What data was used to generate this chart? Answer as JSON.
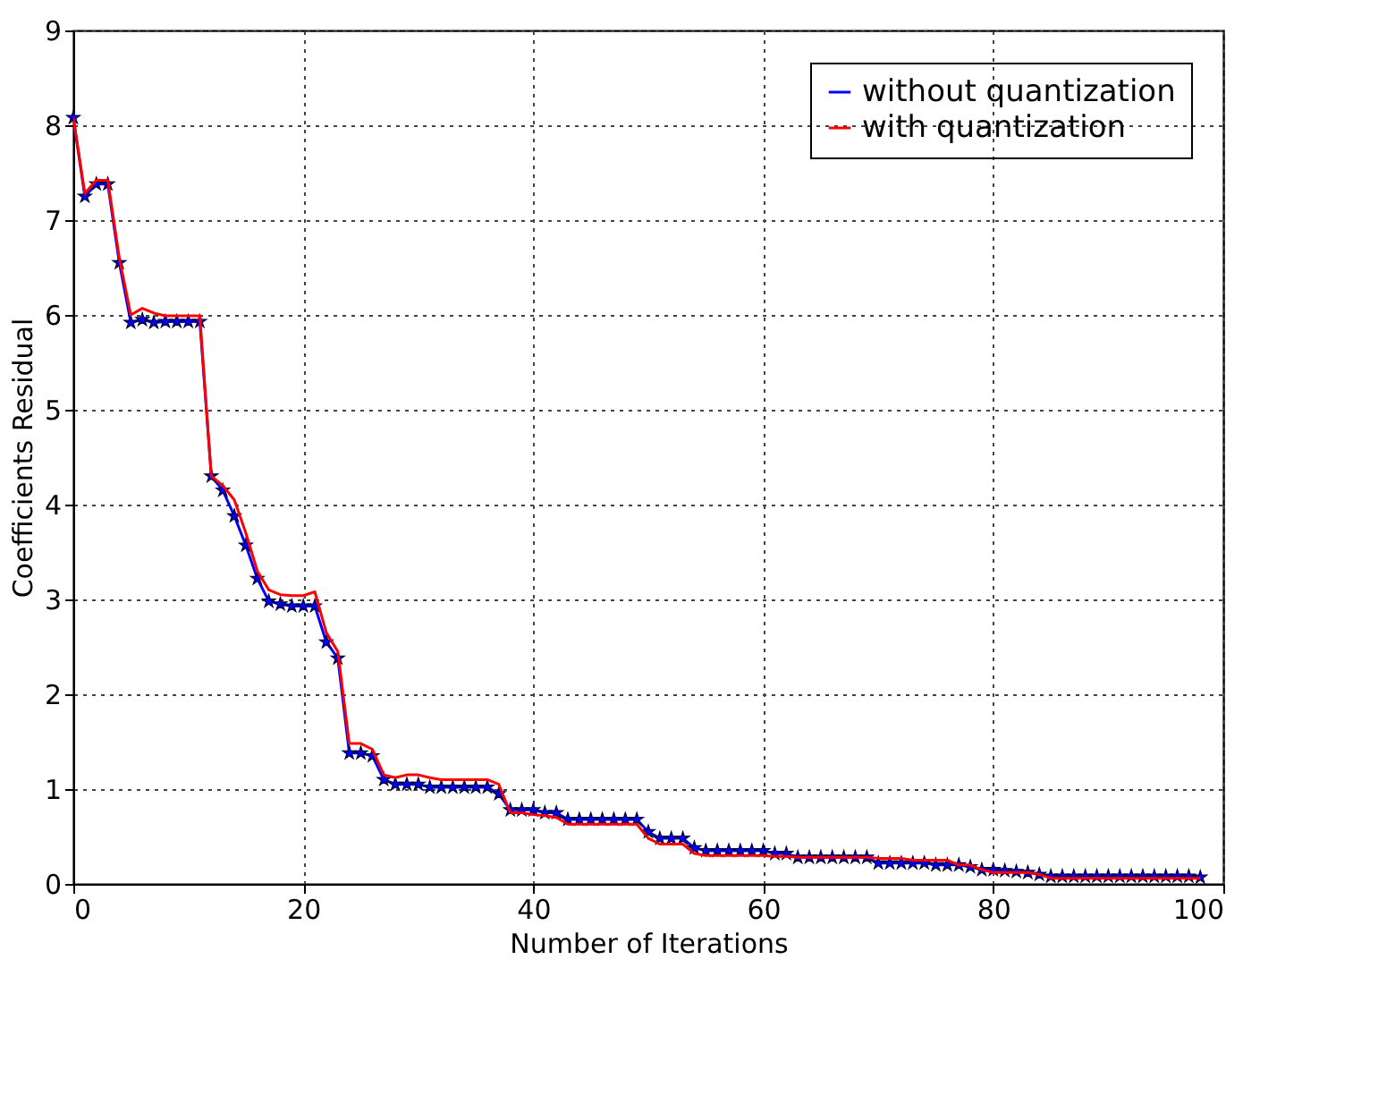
{
  "chart_data": {
    "type": "line",
    "xlabel": "Number of Iterations",
    "ylabel": "Coefficients Residual",
    "xlim": [
      0,
      100
    ],
    "ylim": [
      0,
      9
    ],
    "xticks": [
      0,
      20,
      40,
      60,
      80,
      100
    ],
    "yticks": [
      0,
      1,
      2,
      3,
      4,
      5,
      6,
      7,
      8,
      9
    ],
    "grid": true,
    "legend": "top right",
    "series": [
      {
        "name": "without quantization",
        "color": "#0000ff",
        "marker": "star",
        "x": [
          0,
          1,
          2,
          3,
          4,
          5,
          6,
          7,
          8,
          9,
          10,
          11,
          12,
          13,
          14,
          15,
          16,
          17,
          18,
          19,
          20,
          21,
          22,
          23,
          24,
          25,
          26,
          27,
          28,
          29,
          30,
          31,
          32,
          33,
          34,
          35,
          36,
          37,
          38,
          39,
          40,
          41,
          42,
          43,
          44,
          45,
          46,
          47,
          48,
          49,
          50,
          51,
          52,
          53,
          54,
          55,
          56,
          57,
          58,
          59,
          60,
          61,
          62,
          63,
          64,
          65,
          66,
          67,
          68,
          69,
          70,
          71,
          72,
          73,
          74,
          75,
          76,
          77,
          78,
          79,
          80,
          81,
          82,
          83,
          84,
          85,
          86,
          87,
          88,
          89,
          90,
          91,
          92,
          93,
          94,
          95,
          96,
          97,
          98
        ],
        "values": [
          8.08,
          7.25,
          7.38,
          7.38,
          6.55,
          5.92,
          5.95,
          5.92,
          5.93,
          5.93,
          5.93,
          5.93,
          4.3,
          4.15,
          3.88,
          3.57,
          3.22,
          2.98,
          2.95,
          2.93,
          2.93,
          2.93,
          2.55,
          2.38,
          1.38,
          1.38,
          1.35,
          1.1,
          1.05,
          1.05,
          1.05,
          1.02,
          1.02,
          1.02,
          1.02,
          1.02,
          1.02,
          0.95,
          0.78,
          0.78,
          0.78,
          0.75,
          0.75,
          0.68,
          0.68,
          0.68,
          0.68,
          0.68,
          0.68,
          0.68,
          0.55,
          0.48,
          0.48,
          0.48,
          0.38,
          0.35,
          0.35,
          0.35,
          0.35,
          0.35,
          0.35,
          0.32,
          0.32,
          0.28,
          0.28,
          0.28,
          0.28,
          0.28,
          0.28,
          0.28,
          0.22,
          0.22,
          0.22,
          0.22,
          0.22,
          0.2,
          0.2,
          0.2,
          0.18,
          0.15,
          0.15,
          0.14,
          0.13,
          0.12,
          0.1,
          0.08,
          0.08,
          0.08,
          0.08,
          0.08,
          0.08,
          0.08,
          0.08,
          0.08,
          0.08,
          0.08,
          0.08,
          0.08,
          0.07
        ]
      },
      {
        "name": "with quantization",
        "color": "#ff0000",
        "marker": "none",
        "x": [
          0,
          1,
          2,
          3,
          4,
          5,
          6,
          7,
          8,
          9,
          10,
          11,
          12,
          13,
          14,
          15,
          16,
          17,
          18,
          19,
          20,
          21,
          22,
          23,
          24,
          25,
          26,
          27,
          28,
          29,
          30,
          31,
          32,
          33,
          34,
          35,
          36,
          37,
          38,
          39,
          40,
          41,
          42,
          43,
          44,
          45,
          46,
          47,
          48,
          49,
          50,
          51,
          52,
          53,
          54,
          55,
          56,
          57,
          58,
          59,
          60,
          61,
          62,
          63,
          64,
          65,
          66,
          67,
          68,
          69,
          70,
          71,
          72,
          73,
          74,
          75,
          76,
          77,
          78,
          79,
          80,
          81,
          82,
          83,
          84,
          85,
          86,
          87,
          88,
          89,
          90,
          91,
          92,
          93,
          94,
          95,
          96,
          97,
          98
        ],
        "values": [
          8.08,
          7.28,
          7.42,
          7.42,
          6.6,
          6.0,
          6.07,
          6.02,
          5.99,
          5.99,
          5.99,
          5.99,
          4.3,
          4.2,
          4.05,
          3.7,
          3.3,
          3.1,
          3.05,
          3.04,
          3.04,
          3.08,
          2.65,
          2.45,
          1.48,
          1.48,
          1.42,
          1.15,
          1.12,
          1.15,
          1.15,
          1.12,
          1.1,
          1.1,
          1.1,
          1.1,
          1.1,
          1.05,
          0.75,
          0.75,
          0.73,
          0.72,
          0.7,
          0.63,
          0.63,
          0.63,
          0.63,
          0.63,
          0.63,
          0.63,
          0.48,
          0.42,
          0.42,
          0.42,
          0.32,
          0.3,
          0.3,
          0.3,
          0.3,
          0.3,
          0.3,
          0.29,
          0.29,
          0.28,
          0.28,
          0.28,
          0.28,
          0.28,
          0.28,
          0.28,
          0.27,
          0.27,
          0.27,
          0.25,
          0.25,
          0.25,
          0.25,
          0.2,
          0.2,
          0.15,
          0.12,
          0.12,
          0.12,
          0.12,
          0.1,
          0.06,
          0.06,
          0.06,
          0.06,
          0.06,
          0.06,
          0.06,
          0.06,
          0.06,
          0.06,
          0.06,
          0.06,
          0.06,
          0.06
        ]
      }
    ]
  }
}
